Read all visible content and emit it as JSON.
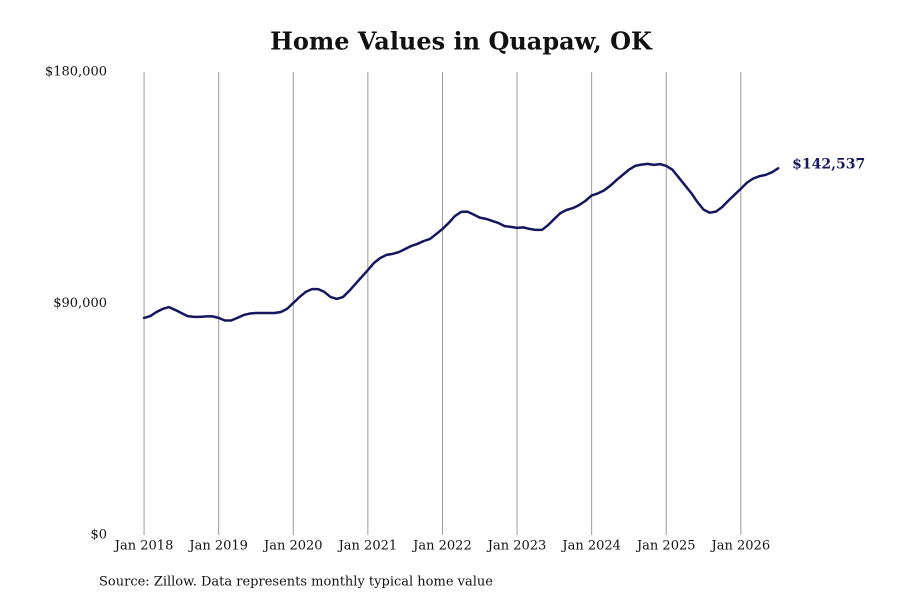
{
  "chart_data": {
    "type": "line",
    "title": "Home Values in Quapaw, OK",
    "source": "Source: Zillow. Data represents monthly typical home value",
    "color": "#16165e",
    "grid": true,
    "x": [
      "2018-01",
      "2018-02",
      "2018-03",
      "2018-04",
      "2018-05",
      "2018-06",
      "2018-07",
      "2018-08",
      "2018-09",
      "2018-10",
      "2018-11",
      "2018-12",
      "2019-01",
      "2019-02",
      "2019-03",
      "2019-04",
      "2019-05",
      "2019-06",
      "2019-07",
      "2019-08",
      "2019-09",
      "2019-10",
      "2019-11",
      "2019-12",
      "2020-01",
      "2020-02",
      "2020-03",
      "2020-04",
      "2020-05",
      "2020-06",
      "2020-07",
      "2020-08",
      "2020-09",
      "2020-10",
      "2020-11",
      "2020-12",
      "2021-01",
      "2021-02",
      "2021-03",
      "2021-04",
      "2021-05",
      "2021-06",
      "2021-07",
      "2021-08",
      "2021-09",
      "2021-10",
      "2021-11",
      "2021-12",
      "2022-01",
      "2022-02",
      "2022-03",
      "2022-04",
      "2022-05",
      "2022-06",
      "2022-07",
      "2022-08",
      "2022-09",
      "2022-10",
      "2022-11",
      "2022-12",
      "2023-01",
      "2023-02",
      "2023-03",
      "2023-04",
      "2023-05",
      "2023-06",
      "2023-07",
      "2023-08",
      "2023-09",
      "2023-10",
      "2023-11",
      "2023-12",
      "2024-01",
      "2024-02",
      "2024-03",
      "2024-04",
      "2024-05",
      "2024-06",
      "2024-07",
      "2024-08",
      "2024-09",
      "2024-10",
      "2024-11",
      "2024-12",
      "2025-01",
      "2025-02",
      "2025-03",
      "2025-04",
      "2025-05",
      "2025-06",
      "2025-07",
      "2025-08",
      "2025-09",
      "2025-10",
      "2025-11",
      "2025-12",
      "2026-01",
      "2026-02",
      "2026-03",
      "2026-04",
      "2026-05",
      "2026-06",
      "2026-07"
    ],
    "values": [
      84400,
      85100,
      86700,
      87900,
      88600,
      87500,
      86300,
      85100,
      84800,
      84800,
      85000,
      85000,
      84400,
      83400,
      83400,
      84400,
      85500,
      86100,
      86300,
      86300,
      86300,
      86300,
      86700,
      87900,
      90200,
      92500,
      94500,
      95600,
      95600,
      94500,
      92500,
      91800,
      92500,
      94900,
      97600,
      100300,
      103000,
      105800,
      107700,
      108900,
      109300,
      110000,
      111200,
      112400,
      113200,
      114300,
      115100,
      117000,
      119000,
      121300,
      124000,
      125600,
      125700,
      124600,
      123400,
      122900,
      122100,
      121300,
      120100,
      119800,
      119400,
      119600,
      119000,
      118600,
      118600,
      120500,
      122900,
      125200,
      126400,
      127100,
      128300,
      129900,
      132000,
      132800,
      134000,
      135800,
      138000,
      140000,
      142000,
      143500,
      144000,
      144300,
      143900,
      144200,
      143500,
      142000,
      139000,
      136000,
      133000,
      129500,
      126500,
      125300,
      125700,
      127500,
      130000,
      132300,
      134600,
      137000,
      138600,
      139500,
      140000,
      141000,
      142537
    ],
    "value_labels": [
      null,
      null,
      null,
      null,
      null,
      null,
      null,
      null,
      null,
      null,
      null,
      null,
      null,
      null,
      null,
      null,
      null,
      null,
      null,
      null,
      null,
      null,
      null,
      null,
      null,
      null,
      null,
      null,
      null,
      null,
      null,
      null,
      null,
      null,
      null,
      null,
      null,
      null,
      null,
      null,
      null,
      null,
      null,
      null,
      null,
      null,
      null,
      null,
      null,
      null,
      null,
      null,
      null,
      null,
      null,
      null,
      null,
      null,
      null,
      null,
      null,
      null,
      null,
      null,
      null,
      null,
      null,
      null,
      null,
      null,
      null,
      null,
      null,
      null,
      null,
      null,
      null,
      null,
      null,
      null,
      null,
      null,
      null,
      null,
      null,
      null,
      null,
      null,
      null,
      null,
      null,
      null,
      null,
      null,
      null,
      null,
      null,
      null,
      null,
      null,
      null,
      null,
      "$142,537"
    ],
    "xlim": [
      "2017-08",
      "2026-11"
    ],
    "xticks": [
      {
        "value": "2018-01",
        "label": "Jan 2018"
      },
      {
        "value": "2019-01",
        "label": "Jan 2019"
      },
      {
        "value": "2020-01",
        "label": "Jan 2020"
      },
      {
        "value": "2021-01",
        "label": "Jan 2021"
      },
      {
        "value": "2022-01",
        "label": "Jan 2022"
      },
      {
        "value": "2023-01",
        "label": "Jan 2023"
      },
      {
        "value": "2024-01",
        "label": "Jan 2024"
      },
      {
        "value": "2025-01",
        "label": "Jan 2025"
      },
      {
        "value": "2026-01",
        "label": "Jan 2026"
      }
    ],
    "ylim": [
      0,
      180000
    ],
    "yticks": [
      {
        "value": 0,
        "label": "$0"
      },
      {
        "value": 90000,
        "label": "$90,000"
      },
      {
        "value": 180000,
        "label": "$180,000"
      }
    ]
  }
}
